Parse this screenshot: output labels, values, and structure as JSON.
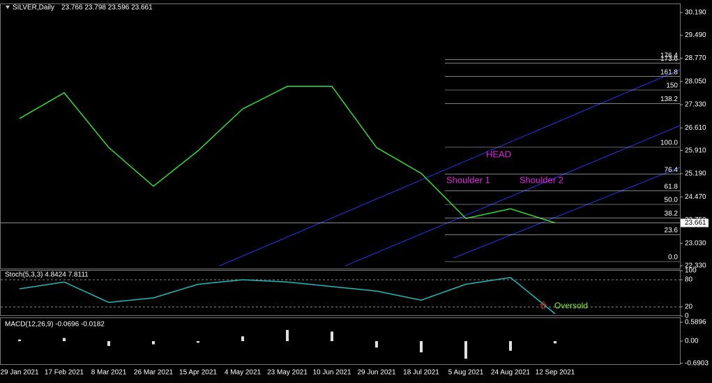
{
  "chart_data": [
    {
      "type": "line",
      "title": "SILVER,Daily",
      "subtitle": "23.766 23.798 23.596 23.661",
      "categories": [
        "29 Jan 2021",
        "17 Feb 2021",
        "8 Mar 2021",
        "26 Mar 2021",
        "15 Apr 2021",
        "4 May 2021",
        "23 May 2021",
        "10 Jun 2021",
        "29 Jun 2021",
        "18 Jul 2021",
        "5 Aug 2021",
        "24 Aug 2021",
        "12 Sep 2021"
      ],
      "values": [
        26.9,
        27.7,
        26.0,
        24.8,
        25.9,
        27.2,
        27.9,
        27.9,
        26.0,
        25.2,
        23.8,
        24.1,
        23.661
      ],
      "color": "#33dd33",
      "ylim": [
        22.243,
        30.472
      ],
      "yticks": [
        {
          "value": 22.33,
          "label": "22.330"
        },
        {
          "value": 23.03,
          "label": "23.030"
        },
        {
          "value": 23.75,
          "label": "23.750"
        },
        {
          "value": 24.47,
          "label": "24.470"
        },
        {
          "value": 25.19,
          "label": "25.190"
        },
        {
          "value": 25.91,
          "label": "25.910"
        },
        {
          "value": 26.61,
          "label": "26.610"
        },
        {
          "value": 27.33,
          "label": "27.330"
        },
        {
          "value": 28.05,
          "label": "28.050"
        },
        {
          "value": 28.77,
          "label": "28.770"
        },
        {
          "value": 29.49,
          "label": "29.490"
        },
        {
          "value": 30.19,
          "label": "30.190"
        }
      ],
      "current_price": {
        "value": 23.661,
        "label": "23.661"
      },
      "fibonacci": [
        {
          "value": 0,
          "label": "0.0"
        },
        23.6,
        38.2,
        {
          "value": 50,
          "label": "50.0"
        },
        61.8,
        76.4,
        {
          "value": 100,
          "label": "100.0"
        },
        138.2,
        150,
        161.8,
        173.6,
        176.4
      ],
      "annotations": [
        "HEAD",
        "Shoulder 1",
        "Shoulder 2"
      ]
    },
    {
      "type": "line",
      "title": "Stoch(5,3,3) 4.8424 7.8111",
      "values": [
        60,
        75,
        30,
        40,
        70,
        80,
        75,
        65,
        55,
        35,
        70,
        85,
        5
      ],
      "color": "#22bbbb",
      "ylim": [
        0,
        100
      ],
      "yticks": [
        0,
        20,
        80,
        100
      ],
      "annotations": [
        "Oversold"
      ]
    },
    {
      "type": "bar",
      "title": "MACD(12,26,9) -0.0696 -0.0182",
      "values": [
        0.05,
        0.1,
        -0.15,
        -0.1,
        -0.05,
        0.15,
        0.35,
        0.3,
        -0.2,
        -0.35,
        -0.55,
        -0.3,
        -0.07
      ],
      "color": "#e0e0e0",
      "ylim": [
        -0.72,
        0.742
      ],
      "yticks": [
        {
          "value": -0.6903,
          "label": "-0.6903"
        },
        {
          "value": 0,
          "label": "0.00"
        },
        0.5896
      ]
    }
  ]
}
